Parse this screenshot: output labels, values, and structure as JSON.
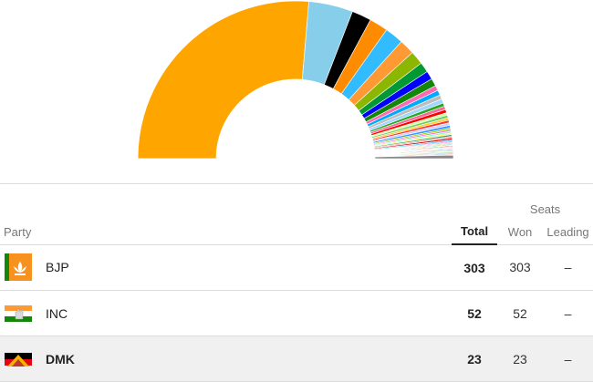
{
  "table": {
    "group_header": "Seats",
    "columns": {
      "party": "Party",
      "total": "Total",
      "won": "Won",
      "leading": "Leading"
    },
    "rows": [
      {
        "party": "BJP",
        "total": "303",
        "won": "303",
        "leading": "–",
        "color": "#f7a21b",
        "logo": "lotus-icon"
      },
      {
        "party": "INC",
        "total": "52",
        "won": "52",
        "leading": "–",
        "color": "#19aaed",
        "logo": "hand-icon"
      },
      {
        "party": "DMK",
        "total": "23",
        "won": "23",
        "leading": "–",
        "color": "#000000",
        "logo": "rising-sun-icon"
      }
    ]
  },
  "chart_data": {
    "type": "pie",
    "style": "half-donut",
    "slices": [
      {
        "party": "BJP",
        "seats": 303,
        "color": "#ffa500"
      },
      {
        "seats": 52,
        "color": "#87ceeb"
      },
      {
        "seats": 23,
        "color": "#000000"
      },
      {
        "seats": 22,
        "color": "#ff8c00"
      },
      {
        "seats": 22,
        "color": "#33bbff"
      },
      {
        "seats": 18,
        "color": "#ff9933"
      },
      {
        "seats": 16,
        "color": "#8db600"
      },
      {
        "seats": 12,
        "color": "#009933"
      },
      {
        "seats": 10,
        "color": "#0000ff"
      },
      {
        "seats": 9,
        "color": "#138808"
      },
      {
        "seats": 6,
        "color": "#ff69b4"
      },
      {
        "seats": 6,
        "color": "#00aaff"
      },
      {
        "seats": 5,
        "color": "#bcbcbc"
      },
      {
        "seats": 5,
        "color": "#a0d6ff"
      },
      {
        "seats": 4,
        "color": "#22aa22"
      },
      {
        "seats": 4,
        "color": "#ff6699"
      },
      {
        "seats": 4,
        "color": "#ff0000"
      },
      {
        "seats": 3,
        "color": "#ccff99"
      },
      {
        "seats": 3,
        "color": "#66cc66"
      },
      {
        "seats": 3,
        "color": "#ffcc33"
      },
      {
        "seats": 3,
        "color": "#ff3333"
      },
      {
        "seats": 3,
        "color": "#ccccff"
      },
      {
        "seats": 3,
        "color": "#3399ff"
      },
      {
        "seats": 2,
        "color": "#99cc00"
      },
      {
        "seats": 2,
        "color": "#ff66cc"
      },
      {
        "seats": 2,
        "color": "#66ffcc"
      },
      {
        "seats": 2,
        "color": "#ffee66"
      },
      {
        "seats": 2,
        "color": "#339966"
      },
      {
        "seats": 2,
        "color": "#ff9999"
      },
      {
        "seats": 2,
        "color": "#cc0000"
      },
      {
        "seats": 2,
        "color": "#66ccff"
      },
      {
        "seats": 1,
        "color": "#ff00ff"
      },
      {
        "seats": 1,
        "color": "#ff7f50"
      },
      {
        "seats": 1,
        "color": "#9acd32"
      },
      {
        "seats": 1,
        "color": "#00ced1"
      },
      {
        "seats": 1,
        "color": "#ffd700"
      },
      {
        "seats": 1,
        "color": "#dc143c"
      },
      {
        "seats": 1,
        "color": "#40e0d0"
      },
      {
        "seats": 1,
        "color": "#ffb6c1"
      },
      {
        "seats": 1,
        "color": "#adff2f"
      },
      {
        "seats": 1,
        "color": "#4682b4"
      },
      {
        "seats": 1,
        "color": "#f08080"
      },
      {
        "seats": 1,
        "color": "#98fb98"
      },
      {
        "seats": 1,
        "color": "#daa520"
      },
      {
        "seats": 1,
        "color": "#6495ed"
      },
      {
        "seats": 1,
        "color": "#ff4500"
      },
      {
        "seats": 1,
        "color": "#c0c0c0"
      },
      {
        "seats": 4,
        "color": "#888888"
      }
    ]
  }
}
